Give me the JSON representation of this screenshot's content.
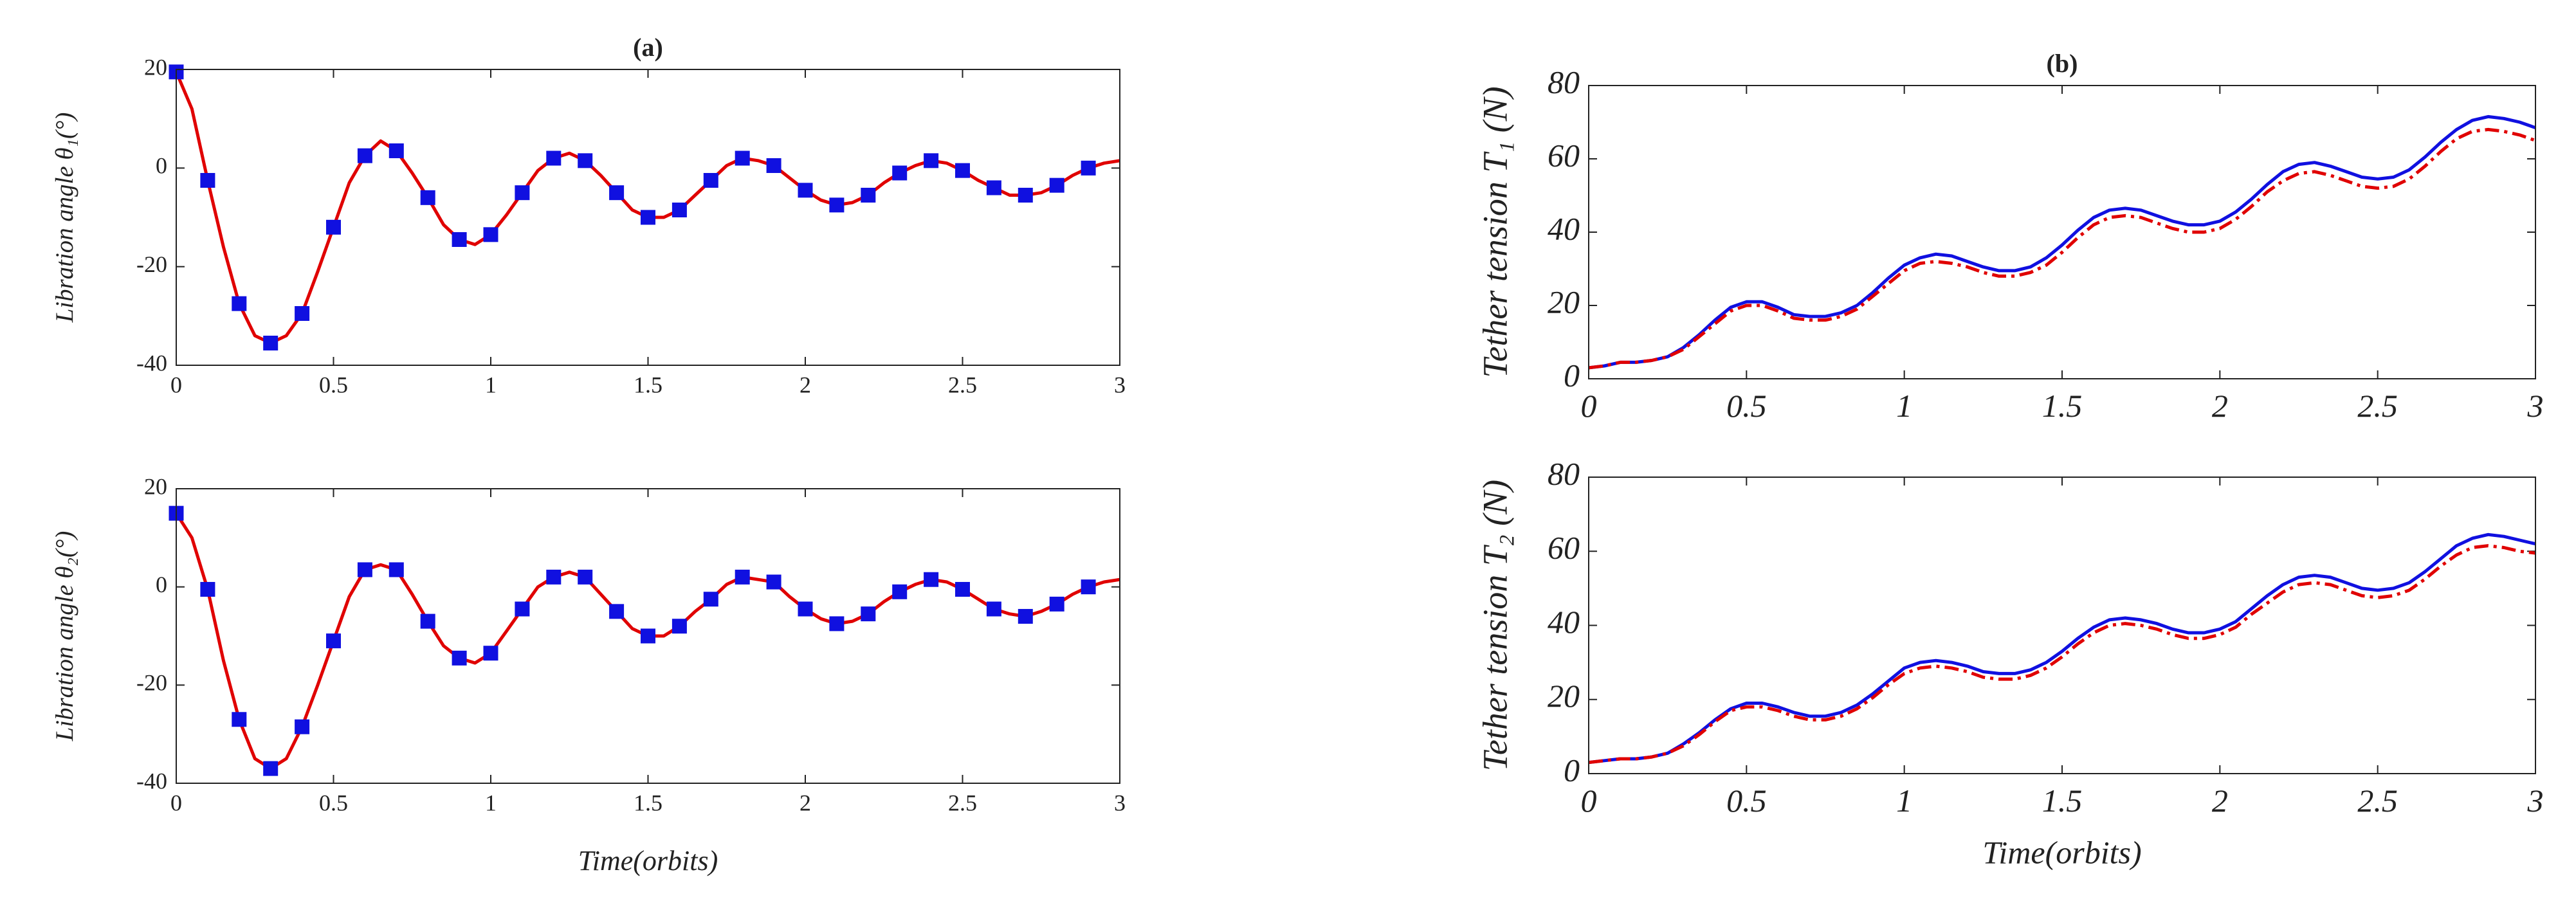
{
  "chart_data": [
    {
      "type": "line",
      "title": "(a)",
      "ylabel": "Libration angle θ₁(°)",
      "xlim": [
        0,
        3
      ],
      "xticks": [
        0,
        0.5,
        1,
        1.5,
        2,
        2.5,
        3
      ],
      "ylim": [
        -40,
        20
      ],
      "yticks": [
        -40,
        -20,
        0,
        20
      ],
      "series": [
        {
          "color": "#e00000",
          "x": [
            0,
            0.05,
            0.1,
            0.15,
            0.2,
            0.25,
            0.3,
            0.35,
            0.4,
            0.45,
            0.5,
            0.55,
            0.6,
            0.65,
            0.7,
            0.75,
            0.8,
            0.85,
            0.9,
            0.95,
            1,
            1.05,
            1.1,
            1.15,
            1.2,
            1.25,
            1.3,
            1.35,
            1.4,
            1.45,
            1.5,
            1.55,
            1.6,
            1.65,
            1.7,
            1.75,
            1.8,
            1.85,
            1.9,
            1.95,
            2,
            2.05,
            2.1,
            2.15,
            2.2,
            2.25,
            2.3,
            2.35,
            2.4,
            2.45,
            2.5,
            2.55,
            2.6,
            2.65,
            2.7,
            2.75,
            2.8,
            2.85,
            2.9,
            2.95,
            3
          ],
          "values": [
            19.5,
            12,
            -2.5,
            -16,
            -27.5,
            -34,
            -35.5,
            -34,
            -29.5,
            -21,
            -12,
            -3,
            2.5,
            5.5,
            3.5,
            -1,
            -6,
            -11.5,
            -14.5,
            -15.5,
            -13.5,
            -9.5,
            -5,
            -0.5,
            2,
            3,
            1.5,
            -1.5,
            -5,
            -8.5,
            -10,
            -10,
            -8.5,
            -5.5,
            -2.5,
            0.5,
            2,
            1.5,
            0.5,
            -2,
            -4.5,
            -6.5,
            -7.5,
            -7,
            -5.5,
            -3,
            -1,
            0.5,
            1.5,
            1,
            -0.5,
            -2.5,
            -4,
            -5.5,
            -5.5,
            -5,
            -3.5,
            -1.5,
            0,
            1,
            1.5
          ]
        },
        {
          "color": "#1010e0",
          "marker": "square",
          "x": [
            0,
            0.1,
            0.2,
            0.3,
            0.4,
            0.5,
            0.6,
            0.7,
            0.8,
            0.9,
            1,
            1.1,
            1.2,
            1.3,
            1.4,
            1.5,
            1.6,
            1.7,
            1.8,
            1.9,
            2,
            2.1,
            2.2,
            2.3,
            2.4,
            2.5,
            2.6,
            2.7,
            2.8,
            2.9
          ],
          "values": [
            19.5,
            -2.5,
            -27.5,
            -35.5,
            -29.5,
            -12,
            2.5,
            3.5,
            -6,
            -14.5,
            -13.5,
            -5,
            2,
            1.5,
            -5,
            -10,
            -8.5,
            -2.5,
            2,
            0.5,
            -4.5,
            -7.5,
            -5.5,
            -1,
            1.5,
            -0.5,
            -4,
            -5.5,
            -3.5,
            0
          ]
        }
      ]
    },
    {
      "type": "line",
      "ylabel": "Libration angle θ₂(°)",
      "xlabel": "Time(orbits)",
      "xlim": [
        0,
        3
      ],
      "xticks": [
        0,
        0.5,
        1,
        1.5,
        2,
        2.5,
        3
      ],
      "ylim": [
        -40,
        20
      ],
      "yticks": [
        -40,
        -20,
        0,
        20
      ],
      "series": [
        {
          "color": "#e00000",
          "x": [
            0,
            0.05,
            0.1,
            0.15,
            0.2,
            0.25,
            0.3,
            0.35,
            0.4,
            0.45,
            0.5,
            0.55,
            0.6,
            0.65,
            0.7,
            0.75,
            0.8,
            0.85,
            0.9,
            0.95,
            1,
            1.05,
            1.1,
            1.15,
            1.2,
            1.25,
            1.3,
            1.35,
            1.4,
            1.45,
            1.5,
            1.55,
            1.6,
            1.65,
            1.7,
            1.75,
            1.8,
            1.85,
            1.9,
            1.95,
            2,
            2.05,
            2.1,
            2.15,
            2.2,
            2.25,
            2.3,
            2.35,
            2.4,
            2.45,
            2.5,
            2.55,
            2.6,
            2.65,
            2.7,
            2.75,
            2.8,
            2.85,
            2.9,
            2.95,
            3
          ],
          "values": [
            15,
            10,
            -0.5,
            -15,
            -27,
            -35,
            -37,
            -35,
            -28.5,
            -20,
            -11,
            -2,
            3.5,
            4.5,
            3.5,
            -1.5,
            -7,
            -12,
            -14.5,
            -15.5,
            -13.5,
            -9,
            -4.5,
            0,
            2,
            3,
            2,
            -1.5,
            -5,
            -8.5,
            -10,
            -10,
            -8,
            -5,
            -2.5,
            0.5,
            2,
            1.5,
            1,
            -2,
            -4.5,
            -6.5,
            -7.5,
            -7,
            -5.5,
            -3,
            -1,
            0.5,
            1.5,
            1,
            -0.5,
            -2.5,
            -4.5,
            -5.5,
            -6,
            -5,
            -3.5,
            -1.5,
            0,
            1,
            1.5
          ]
        },
        {
          "color": "#1010e0",
          "marker": "square",
          "x": [
            0,
            0.1,
            0.2,
            0.3,
            0.4,
            0.5,
            0.6,
            0.7,
            0.8,
            0.9,
            1,
            1.1,
            1.2,
            1.3,
            1.4,
            1.5,
            1.6,
            1.7,
            1.8,
            1.9,
            2,
            2.1,
            2.2,
            2.3,
            2.4,
            2.5,
            2.6,
            2.7,
            2.8,
            2.9
          ],
          "values": [
            15,
            -0.5,
            -27,
            -37,
            -28.5,
            -11,
            3.5,
            3.5,
            -7,
            -14.5,
            -13.5,
            -4.5,
            2,
            2,
            -5,
            -10,
            -8,
            -2.5,
            2,
            1,
            -4.5,
            -7.5,
            -5.5,
            -1,
            1.5,
            -0.5,
            -4.5,
            -6,
            -3.5,
            0
          ]
        }
      ]
    },
    {
      "type": "line",
      "title": "(b)",
      "ylabel": "Tether tension T₁ (N)",
      "xlim": [
        0,
        3
      ],
      "xticks": [
        0,
        0.5,
        1,
        1.5,
        2,
        2.5,
        3
      ],
      "ylim": [
        0,
        80
      ],
      "yticks": [
        0,
        20,
        40,
        60,
        80
      ],
      "series": [
        {
          "color": "#1010e0",
          "x": [
            0,
            0.05,
            0.1,
            0.15,
            0.2,
            0.25,
            0.3,
            0.35,
            0.4,
            0.45,
            0.5,
            0.55,
            0.6,
            0.65,
            0.7,
            0.75,
            0.8,
            0.85,
            0.9,
            0.95,
            1,
            1.05,
            1.1,
            1.15,
            1.2,
            1.25,
            1.3,
            1.35,
            1.4,
            1.45,
            1.5,
            1.55,
            1.6,
            1.65,
            1.7,
            1.75,
            1.8,
            1.85,
            1.9,
            1.95,
            2,
            2.05,
            2.1,
            2.15,
            2.2,
            2.25,
            2.3,
            2.35,
            2.4,
            2.45,
            2.5,
            2.55,
            2.6,
            2.65,
            2.7,
            2.75,
            2.8,
            2.85,
            2.9,
            2.95,
            3
          ],
          "values": [
            3,
            3.5,
            4.5,
            4.5,
            5,
            6,
            8.5,
            12,
            16,
            19.5,
            21,
            21,
            19.5,
            17.5,
            17,
            17,
            18,
            20,
            23.5,
            27.5,
            31,
            33,
            34,
            33.5,
            32,
            30.5,
            29.5,
            29.5,
            30.5,
            33,
            36.5,
            40.5,
            44,
            46,
            46.5,
            46,
            44.5,
            43,
            42,
            42,
            43,
            45.5,
            49,
            53,
            56.5,
            58.5,
            59,
            58,
            56.5,
            55,
            54.5,
            55,
            57,
            60.5,
            64.5,
            68,
            70.5,
            71.5,
            71,
            70,
            68.5
          ]
        },
        {
          "color": "#e00000",
          "dash": "dashdot",
          "x": [
            0,
            0.05,
            0.1,
            0.15,
            0.2,
            0.25,
            0.3,
            0.35,
            0.4,
            0.45,
            0.5,
            0.55,
            0.6,
            0.65,
            0.7,
            0.75,
            0.8,
            0.85,
            0.9,
            0.95,
            1,
            1.05,
            1.1,
            1.15,
            1.2,
            1.25,
            1.3,
            1.35,
            1.4,
            1.45,
            1.5,
            1.55,
            1.6,
            1.65,
            1.7,
            1.75,
            1.8,
            1.85,
            1.9,
            1.95,
            2,
            2.05,
            2.1,
            2.15,
            2.2,
            2.25,
            2.3,
            2.35,
            2.4,
            2.45,
            2.5,
            2.55,
            2.6,
            2.65,
            2.7,
            2.75,
            2.8,
            2.85,
            2.9,
            2.95,
            3
          ],
          "values": [
            3,
            3.5,
            4.5,
            4.5,
            5,
            6,
            8,
            11.5,
            15,
            18.5,
            20,
            20,
            18.5,
            16.5,
            16,
            16,
            17,
            19,
            22.5,
            26,
            29.5,
            31.5,
            32,
            31.5,
            30.5,
            29,
            28,
            28,
            29,
            31,
            34.5,
            38.5,
            42,
            44,
            44.5,
            44,
            42.5,
            41,
            40,
            40,
            41,
            43.5,
            47,
            51,
            54,
            56,
            56.5,
            55.5,
            54,
            52.5,
            52,
            52.5,
            54.5,
            58,
            62,
            65.5,
            67.5,
            68,
            67.5,
            66.5,
            65
          ]
        }
      ]
    },
    {
      "type": "line",
      "ylabel": "Tether tension T₂ (N)",
      "xlabel": "Time(orbits)",
      "xlim": [
        0,
        3
      ],
      "xticks": [
        0,
        0.5,
        1,
        1.5,
        2,
        2.5,
        3
      ],
      "ylim": [
        0,
        80
      ],
      "yticks": [
        0,
        20,
        40,
        60,
        80
      ],
      "series": [
        {
          "color": "#1010e0",
          "x": [
            0,
            0.05,
            0.1,
            0.15,
            0.2,
            0.25,
            0.3,
            0.35,
            0.4,
            0.45,
            0.5,
            0.55,
            0.6,
            0.65,
            0.7,
            0.75,
            0.8,
            0.85,
            0.9,
            0.95,
            1,
            1.05,
            1.1,
            1.15,
            1.2,
            1.25,
            1.3,
            1.35,
            1.4,
            1.45,
            1.5,
            1.55,
            1.6,
            1.65,
            1.7,
            1.75,
            1.8,
            1.85,
            1.9,
            1.95,
            2,
            2.05,
            2.1,
            2.15,
            2.2,
            2.25,
            2.3,
            2.35,
            2.4,
            2.45,
            2.5,
            2.55,
            2.6,
            2.65,
            2.7,
            2.75,
            2.8,
            2.85,
            2.9,
            2.95,
            3
          ],
          "values": [
            3,
            3.5,
            4,
            4,
            4.5,
            5.5,
            8,
            11,
            14.5,
            17.5,
            19,
            19,
            18,
            16.5,
            15.5,
            15.5,
            16.5,
            18.5,
            21.5,
            25,
            28.5,
            30,
            30.5,
            30,
            29,
            27.5,
            27,
            27,
            28,
            30,
            33,
            36.5,
            39.5,
            41.5,
            42,
            41.5,
            40.5,
            39,
            38,
            38,
            39,
            41,
            44.5,
            48,
            51,
            53,
            53.5,
            53,
            51.5,
            50,
            49.5,
            50,
            51.5,
            54.5,
            58,
            61.5,
            63.5,
            64.5,
            64,
            63,
            62
          ]
        },
        {
          "color": "#e00000",
          "dash": "dashdot",
          "x": [
            0,
            0.05,
            0.1,
            0.15,
            0.2,
            0.25,
            0.3,
            0.35,
            0.4,
            0.45,
            0.5,
            0.55,
            0.6,
            0.65,
            0.7,
            0.75,
            0.8,
            0.85,
            0.9,
            0.95,
            1,
            1.05,
            1.1,
            1.15,
            1.2,
            1.25,
            1.3,
            1.35,
            1.4,
            1.45,
            1.5,
            1.55,
            1.6,
            1.65,
            1.7,
            1.75,
            1.8,
            1.85,
            1.9,
            1.95,
            2,
            2.05,
            2.1,
            2.15,
            2.2,
            2.25,
            2.3,
            2.35,
            2.4,
            2.45,
            2.5,
            2.55,
            2.6,
            2.65,
            2.7,
            2.75,
            2.8,
            2.85,
            2.9,
            2.95,
            3
          ],
          "values": [
            3,
            3.5,
            4,
            4,
            4.5,
            5.5,
            7.5,
            10.5,
            14,
            17,
            18,
            18,
            17,
            15.5,
            14.5,
            14.5,
            15.5,
            17.5,
            20.5,
            24,
            27,
            28.5,
            29,
            28.5,
            27.5,
            26,
            25.5,
            25.5,
            26.5,
            28.5,
            31.5,
            35,
            38,
            40,
            40.5,
            40,
            39,
            37.5,
            36.5,
            36.5,
            37.5,
            39.5,
            43,
            46,
            49,
            51,
            51.5,
            51,
            49.5,
            48,
            47.5,
            48,
            49.5,
            52.5,
            56,
            59,
            61,
            61.5,
            61,
            60,
            59.5
          ]
        }
      ]
    }
  ]
}
